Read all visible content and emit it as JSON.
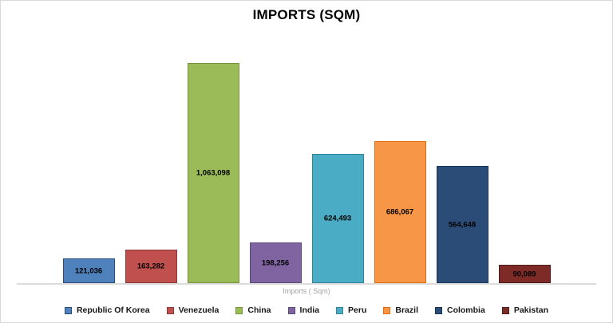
{
  "chart_data": {
    "type": "bar",
    "title": "IMPORTS (SQM)",
    "xlabel": "Imports ( Sqm)",
    "ylabel": "",
    "categories": [
      "Republic Of Korea",
      "Venezuela",
      "China",
      "India",
      "Peru",
      "Brazil",
      "Colombia",
      "Pakistan"
    ],
    "values": [
      121036,
      163282,
      1063098,
      198256,
      624493,
      686067,
      564648,
      90089
    ],
    "value_labels": [
      "121,036",
      "163,282",
      "1,063,098",
      "198,256",
      "624,493",
      "686,067",
      "564,648",
      "90,089"
    ],
    "colors": [
      "#4F81BD",
      "#C0504D",
      "#9BBB59",
      "#8064A2",
      "#4BACC6",
      "#F79646",
      "#2A4C77",
      "#7E2B28"
    ],
    "border_colors": [
      "#2C4D75",
      "#8C3836",
      "#77933C",
      "#5F497A",
      "#31859B",
      "#E26B0A",
      "#17375D",
      "#4F1D1C"
    ],
    "ylim": [
      0,
      1063098
    ],
    "grid": false,
    "legend_position": "bottom",
    "axis_line_color": "#dcdcdc",
    "label_text_color": "#000000",
    "xlabel_text_color": "#a3a3a3"
  }
}
